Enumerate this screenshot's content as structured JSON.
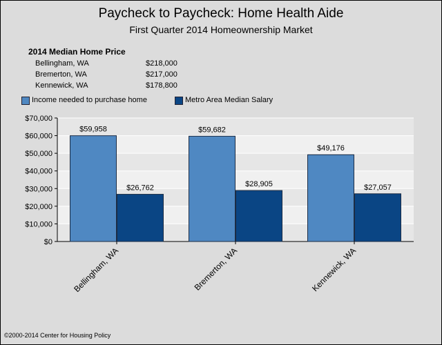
{
  "chart_data": {
    "type": "bar",
    "title": "Paycheck to Paycheck: Home Health Aide",
    "subtitle": "First Quarter 2014 Homeownership Market",
    "categories": [
      "Bellingham, WA",
      "Bremerton, WA",
      "Kennewick, WA"
    ],
    "series": [
      {
        "name": "Income needed to purchase home",
        "values": [
          59958,
          59682,
          49176
        ],
        "labels": [
          "$59,958",
          "$59,682",
          "$49,176"
        ],
        "color": "#4f88c2"
      },
      {
        "name": "Metro Area Median Salary",
        "values": [
          26762,
          28905,
          27057
        ],
        "labels": [
          "$26,762",
          "$28,905",
          "$27,057"
        ],
        "color": "#0a4584"
      }
    ],
    "ylim": [
      0,
      70000
    ],
    "yticks": [
      0,
      10000,
      20000,
      30000,
      40000,
      50000,
      60000,
      70000
    ],
    "ytick_labels": [
      "$0",
      "$10,000",
      "$20,000",
      "$30,000",
      "$40,000",
      "$50,000",
      "$60,000",
      "$70,000"
    ],
    "legend_position": "top-left",
    "grid": true
  },
  "median_prices": {
    "heading": "2014 Median Home Price",
    "rows": [
      {
        "city": "Bellingham, WA",
        "price": "$218,000"
      },
      {
        "city": "Bremerton, WA",
        "price": "$217,000"
      },
      {
        "city": "Kennewick, WA",
        "price": "$178,800"
      }
    ]
  },
  "footer": "©2000-2014 Center for Housing Policy"
}
